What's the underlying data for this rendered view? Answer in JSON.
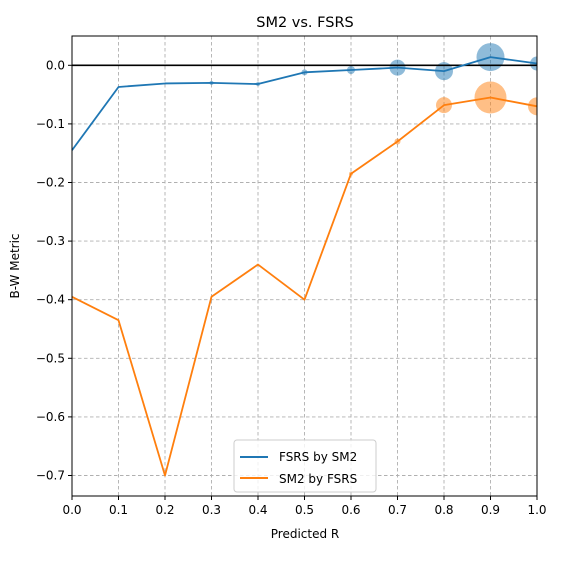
{
  "chart_data": {
    "type": "line",
    "title": "SM2 vs. FSRS",
    "xlabel": "Predicted R",
    "ylabel": "B-W Metric",
    "xlim": [
      0.0,
      1.0
    ],
    "ylim": [
      -0.735,
      0.05
    ],
    "xticks": [
      "0.0",
      "0.1",
      "0.2",
      "0.3",
      "0.4",
      "0.5",
      "0.6",
      "0.7",
      "0.8",
      "0.9",
      "1.0"
    ],
    "yticks": [
      "0.0",
      "−0.1",
      "−0.2",
      "−0.3",
      "−0.4",
      "−0.5",
      "−0.6",
      "−0.7"
    ],
    "grid": true,
    "legend_position": "bottom-center",
    "reference_line_y": 0.0,
    "series": [
      {
        "name": "FSRS by SM2",
        "color": "#1f77b4",
        "x": [
          0.0,
          0.1,
          0.2,
          0.3,
          0.4,
          0.5,
          0.6,
          0.7,
          0.8,
          0.9,
          1.0
        ],
        "y": [
          -0.145,
          -0.037,
          -0.031,
          -0.03,
          -0.032,
          -0.012,
          -0.008,
          -0.004,
          -0.01,
          0.014,
          0.003
        ],
        "marker_sizes": [
          0,
          0,
          0,
          2,
          2,
          3,
          4,
          8,
          9,
          14,
          7
        ]
      },
      {
        "name": "SM2 by FSRS",
        "color": "#ff7f0e",
        "x": [
          0.0,
          0.1,
          0.2,
          0.3,
          0.4,
          0.5,
          0.6,
          0.7,
          0.8,
          0.9,
          1.0
        ],
        "y": [
          -0.395,
          -0.435,
          -0.7,
          -0.395,
          -0.34,
          -0.4,
          -0.185,
          -0.13,
          -0.068,
          -0.055,
          -0.07
        ],
        "marker_sizes": [
          0,
          0,
          0,
          0,
          0,
          0,
          2,
          3,
          8,
          16,
          9
        ]
      }
    ]
  }
}
